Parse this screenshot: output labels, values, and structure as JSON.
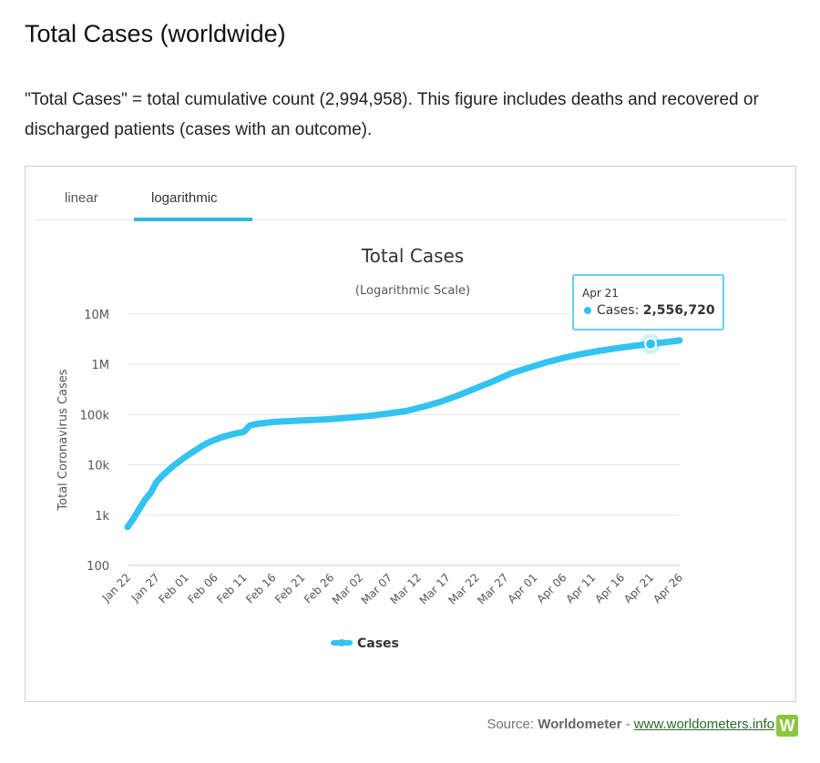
{
  "page": {
    "title": "Total Cases (worldwide)",
    "description": "\"Total Cases\" = total cumulative count (2,994,958). This figure includes deaths and recovered or discharged patients (cases with an outcome)."
  },
  "tabs": [
    {
      "label": "linear",
      "active": false
    },
    {
      "label": "logarithmic",
      "active": true
    }
  ],
  "colors": {
    "series": "#33c3f0",
    "accent": "#33b5e5",
    "grid": "#e6e6e6",
    "logo": "#8cc63f"
  },
  "tooltip": {
    "date": "Apr 21",
    "series": "Cases",
    "value": "2,556,720"
  },
  "source": {
    "label": "Source:",
    "name": "Worldometer",
    "separator": "-",
    "link": "www.worldometers.info",
    "logo_letter": "W"
  },
  "chart_data": {
    "type": "line",
    "title": "Total Cases",
    "subtitle": "(Logarithmic Scale)",
    "ylabel": "Total Coronavirus Cases",
    "yscale": "log",
    "ylim": [
      100,
      10000000
    ],
    "yticks": [
      100,
      1000,
      10000,
      100000,
      1000000,
      10000000
    ],
    "ytick_labels": [
      "100",
      "1k",
      "10k",
      "100k",
      "1M",
      "10M"
    ],
    "xtick_labels": [
      "Jan 22",
      "Jan 27",
      "Feb 01",
      "Feb 06",
      "Feb 11",
      "Feb 16",
      "Feb 21",
      "Feb 26",
      "Mar 02",
      "Mar 07",
      "Mar 12",
      "Mar 17",
      "Mar 22",
      "Mar 27",
      "Apr 01",
      "Apr 06",
      "Apr 11",
      "Apr 16",
      "Apr 21",
      "Apr 26"
    ],
    "legend": "bottom-center",
    "grid": true,
    "series": [
      {
        "name": "Cases",
        "x": [
          "Jan 22",
          "Jan 23",
          "Jan 24",
          "Jan 25",
          "Jan 26",
          "Jan 27",
          "Jan 28",
          "Jan 29",
          "Jan 30",
          "Jan 31",
          "Feb 01",
          "Feb 02",
          "Feb 03",
          "Feb 04",
          "Feb 05",
          "Feb 06",
          "Feb 07",
          "Feb 08",
          "Feb 09",
          "Feb 10",
          "Feb 11",
          "Feb 12",
          "Feb 13",
          "Feb 14",
          "Feb 16",
          "Feb 18",
          "Feb 21",
          "Feb 24",
          "Feb 26",
          "Mar 01",
          "Mar 04",
          "Mar 07",
          "Mar 10",
          "Mar 13",
          "Mar 16",
          "Mar 19",
          "Mar 22",
          "Mar 25",
          "Mar 28",
          "Mar 31",
          "Apr 03",
          "Apr 06",
          "Apr 09",
          "Apr 12",
          "Apr 15",
          "Apr 18",
          "Apr 21",
          "Apr 24",
          "Apr 26"
        ],
        "y": [
          580,
          845,
          1320,
          2015,
          2800,
          4600,
          6100,
          7800,
          9800,
          11950,
          14550,
          17400,
          20600,
          24500,
          28300,
          31500,
          34900,
          37600,
          40600,
          43100,
          45200,
          60400,
          64400,
          67100,
          71200,
          73300,
          76700,
          79300,
          81400,
          88600,
          95400,
          106000,
          118000,
          145000,
          182000,
          244000,
          336000,
          467000,
          664000,
          857000,
          1097000,
          1347000,
          1600000,
          1849000,
          2080000,
          2320000,
          2556720,
          2800000,
          2994958
        ]
      }
    ],
    "tooltip_point": {
      "x": "Apr 21",
      "y": 2556720
    }
  }
}
